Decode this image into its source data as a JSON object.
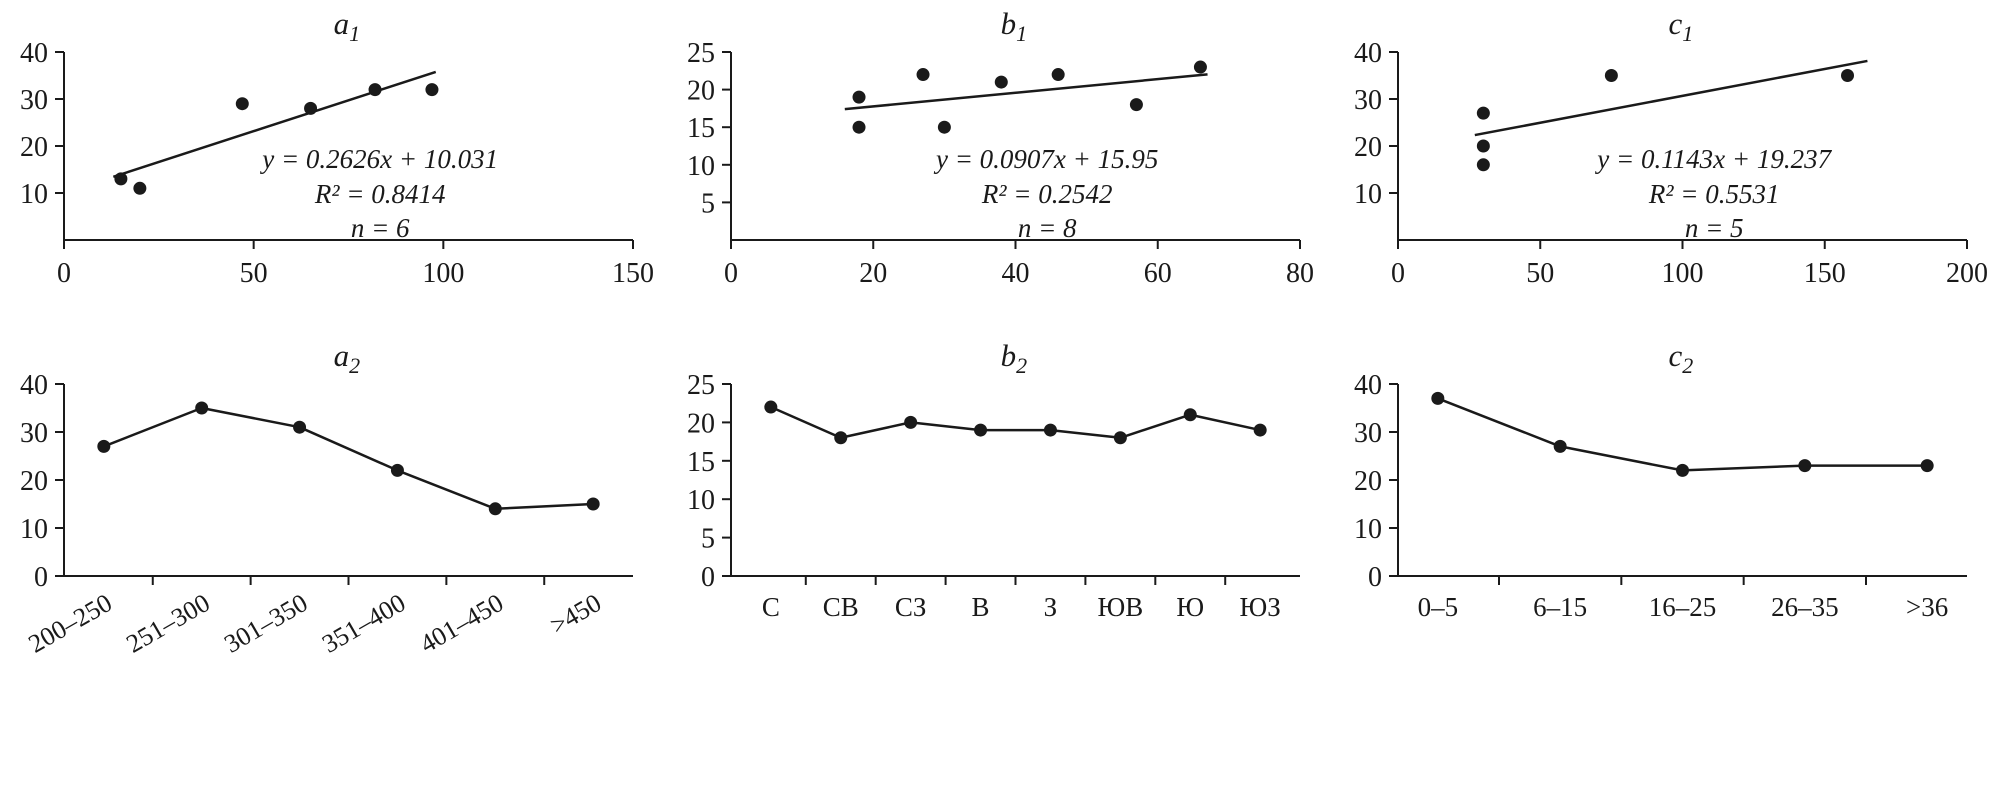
{
  "colors": {
    "ink": "#1a1a1a",
    "background": "#ffffff"
  },
  "chart_data": [
    {
      "id": "a1",
      "title_main": "a",
      "title_sub": "1",
      "type": "scatter",
      "xlim": [
        0,
        150
      ],
      "ylim": [
        0,
        40
      ],
      "xticks": [
        0,
        50,
        100,
        150
      ],
      "yticks": [
        10,
        20,
        30,
        40
      ],
      "points": [
        [
          15,
          13
        ],
        [
          20,
          11
        ],
        [
          47,
          29
        ],
        [
          65,
          28
        ],
        [
          82,
          32
        ],
        [
          97,
          32
        ]
      ],
      "trend": {
        "slope": 0.2626,
        "intercept": 10.031,
        "x1": 13,
        "x2": 98
      },
      "annotation": [
        "y = 0.2626x + 10.031",
        "R² = 0.8414",
        "n = 6"
      ]
    },
    {
      "id": "b1",
      "title_main": "b",
      "title_sub": "1",
      "type": "scatter",
      "xlim": [
        0,
        80
      ],
      "ylim": [
        0,
        25
      ],
      "xticks": [
        0,
        20,
        40,
        60,
        80
      ],
      "yticks": [
        5,
        10,
        15,
        20,
        25
      ],
      "points": [
        [
          18,
          19
        ],
        [
          18,
          15
        ],
        [
          27,
          22
        ],
        [
          30,
          15
        ],
        [
          38,
          21
        ],
        [
          46,
          22
        ],
        [
          57,
          18
        ],
        [
          66,
          23
        ]
      ],
      "trend": {
        "slope": 0.0907,
        "intercept": 15.95,
        "x1": 16,
        "x2": 67
      },
      "annotation": [
        "y = 0.0907x + 15.95",
        "R² = 0.2542",
        "n = 8"
      ]
    },
    {
      "id": "c1",
      "title_main": "c",
      "title_sub": "1",
      "type": "scatter",
      "xlim": [
        0,
        200
      ],
      "ylim": [
        0,
        40
      ],
      "xticks": [
        0,
        50,
        100,
        150,
        200
      ],
      "yticks": [
        10,
        20,
        30,
        40
      ],
      "points": [
        [
          30,
          27
        ],
        [
          30,
          20
        ],
        [
          30,
          16
        ],
        [
          75,
          35
        ],
        [
          158,
          35
        ]
      ],
      "trend": {
        "slope": 0.1143,
        "intercept": 19.237,
        "x1": 27,
        "x2": 165
      },
      "annotation": [
        "y = 0.1143x + 19.237",
        "R² = 0.5531",
        "n = 5"
      ]
    },
    {
      "id": "a2",
      "title_main": "a",
      "title_sub": "2",
      "type": "line",
      "ylim": [
        0,
        40
      ],
      "yticks": [
        0,
        10,
        20,
        30,
        40
      ],
      "categories": [
        "200–250",
        "251–300",
        "301–350",
        "351–400",
        "401–450",
        ">450"
      ],
      "values": [
        27,
        35,
        31,
        22,
        14,
        15
      ],
      "rotate_labels": true
    },
    {
      "id": "b2",
      "title_main": "b",
      "title_sub": "2",
      "type": "line",
      "ylim": [
        0,
        25
      ],
      "yticks": [
        0,
        5,
        10,
        15,
        20,
        25
      ],
      "categories": [
        "С",
        "СВ",
        "СЗ",
        "В",
        "З",
        "ЮВ",
        "Ю",
        "ЮЗ"
      ],
      "values": [
        22,
        18,
        20,
        19,
        19,
        18,
        21,
        19
      ],
      "rotate_labels": false
    },
    {
      "id": "c2",
      "title_main": "c",
      "title_sub": "2",
      "type": "line",
      "ylim": [
        0,
        40
      ],
      "yticks": [
        0,
        10,
        20,
        30,
        40
      ],
      "categories": [
        "0–5",
        "6–15",
        "16–25",
        "26–35",
        ">36"
      ],
      "values": [
        37,
        27,
        22,
        23,
        23
      ],
      "rotate_labels": false
    }
  ]
}
